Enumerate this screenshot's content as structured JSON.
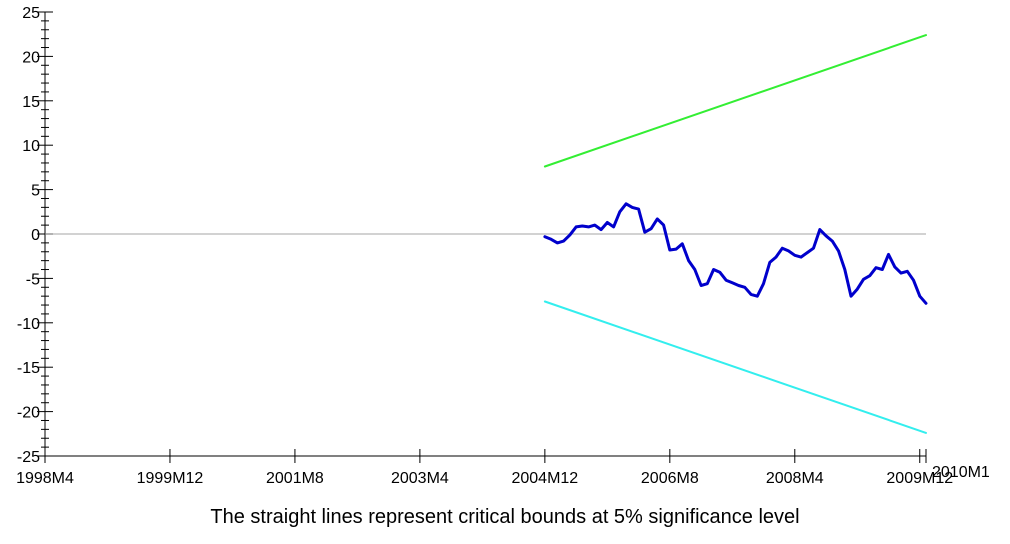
{
  "chart_data": {
    "type": "line",
    "title": "",
    "xlabel": "",
    "ylabel": "",
    "caption": "The straight lines represent critical bounds at 5% significance level",
    "ylim": [
      -25,
      25
    ],
    "yticks": [
      25,
      20,
      15,
      10,
      5,
      0,
      -5,
      -10,
      -15,
      -20,
      -25
    ],
    "xlim": [
      "1998M4",
      "2010M1"
    ],
    "xticks": [
      "1998M4",
      "1999M12",
      "2001M8",
      "2003M4",
      "2004M12",
      "2006M8",
      "2008M4",
      "2009M12",
      "2010M1"
    ],
    "grid": false,
    "zero_line": true,
    "series": [
      {
        "color": "#0000cc",
        "points": [
          [
            "2004M12",
            -0.3
          ],
          [
            "2005M1",
            -0.6
          ],
          [
            "2005M2",
            -1.0
          ],
          [
            "2005M3",
            -0.8
          ],
          [
            "2005M4",
            -0.1
          ],
          [
            "2005M5",
            0.8
          ],
          [
            "2005M6",
            0.9
          ],
          [
            "2005M7",
            0.8
          ],
          [
            "2005M8",
            1.0
          ],
          [
            "2005M9",
            0.5
          ],
          [
            "2005M10",
            1.3
          ],
          [
            "2005M11",
            0.8
          ],
          [
            "2005M12",
            2.5
          ],
          [
            "2006M1",
            3.4
          ],
          [
            "2006M2",
            3.0
          ],
          [
            "2006M3",
            2.8
          ],
          [
            "2006M4",
            0.2
          ],
          [
            "2006M5",
            0.6
          ],
          [
            "2006M6",
            1.7
          ],
          [
            "2006M7",
            1.0
          ],
          [
            "2006M8",
            -1.8
          ],
          [
            "2006M9",
            -1.7
          ],
          [
            "2006M10",
            -1.1
          ],
          [
            "2006M11",
            -3.0
          ],
          [
            "2006M12",
            -4.0
          ],
          [
            "2007M1",
            -5.8
          ],
          [
            "2007M2",
            -5.6
          ],
          [
            "2007M3",
            -4.0
          ],
          [
            "2007M4",
            -4.3
          ],
          [
            "2007M5",
            -5.2
          ],
          [
            "2007M6",
            -5.5
          ],
          [
            "2007M7",
            -5.8
          ],
          [
            "2007M8",
            -6.0
          ],
          [
            "2007M9",
            -6.8
          ],
          [
            "2007M10",
            -7.0
          ],
          [
            "2007M11",
            -5.6
          ],
          [
            "2007M12",
            -3.2
          ],
          [
            "2008M1",
            -2.6
          ],
          [
            "2008M2",
            -1.6
          ],
          [
            "2008M3",
            -1.9
          ],
          [
            "2008M4",
            -2.4
          ],
          [
            "2008M5",
            -2.6
          ],
          [
            "2008M6",
            -2.1
          ],
          [
            "2008M7",
            -1.6
          ],
          [
            "2008M8",
            0.5
          ],
          [
            "2008M9",
            -0.2
          ],
          [
            "2008M10",
            -0.8
          ],
          [
            "2008M11",
            -1.9
          ],
          [
            "2008M12",
            -4.0
          ],
          [
            "2009M1",
            -7.0
          ],
          [
            "2009M2",
            -6.2
          ],
          [
            "2009M3",
            -5.1
          ],
          [
            "2009M4",
            -4.7
          ],
          [
            "2009M5",
            -3.8
          ],
          [
            "2009M6",
            -4.0
          ],
          [
            "2009M7",
            -2.3
          ],
          [
            "2009M8",
            -3.7
          ],
          [
            "2009M9",
            -4.4
          ],
          [
            "2009M10",
            -4.2
          ],
          [
            "2009M11",
            -5.2
          ],
          [
            "2009M12",
            -7.0
          ],
          [
            "2010M1",
            -7.8
          ]
        ]
      },
      {
        "color": "#33ee33",
        "points": [
          [
            "2004M12",
            7.6
          ],
          [
            "2010M1",
            22.4
          ]
        ]
      },
      {
        "color": "#33eeee",
        "points": [
          [
            "2004M12",
            -7.6
          ],
          [
            "2010M1",
            -22.4
          ]
        ]
      }
    ]
  }
}
